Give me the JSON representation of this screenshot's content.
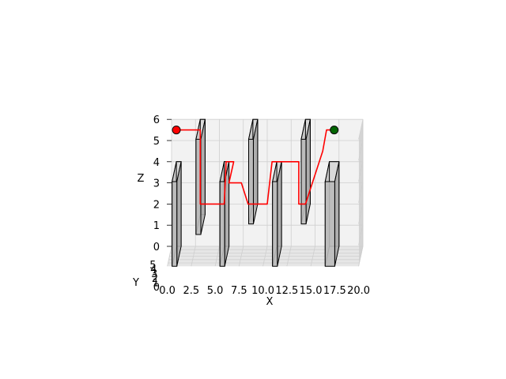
{
  "chart_data": {
    "type": "3d-path-with-obstacles",
    "xlabel": "X",
    "ylabel": "Y",
    "zlabel": "Z",
    "xlim": [
      0,
      20
    ],
    "ylim": [
      0,
      6
    ],
    "zlim": [
      0,
      6
    ],
    "x_ticks": [
      "0.0",
      "2.5",
      "5.0",
      "7.5",
      "10.0",
      "12.5",
      "15.0",
      "17.5",
      "20.0"
    ],
    "z_ticks": [
      "0",
      "1",
      "2",
      "3",
      "4",
      "5",
      "6"
    ],
    "y_ticks": [
      "0",
      "1",
      "2",
      "3",
      "4",
      "5"
    ],
    "grid": true,
    "obstacles": [
      {
        "x": [
          0.5,
          1.0
        ],
        "y": [
          0,
          6
        ],
        "z": [
          0,
          4
        ]
      },
      {
        "x": [
          3.0,
          3.5
        ],
        "y": [
          0,
          6
        ],
        "z": [
          1.5,
          6
        ]
      },
      {
        "x": [
          5.5,
          6.0
        ],
        "y": [
          0,
          6
        ],
        "z": [
          0,
          4
        ]
      },
      {
        "x": [
          8.5,
          9.0
        ],
        "y": [
          0,
          6
        ],
        "z": [
          2,
          6
        ]
      },
      {
        "x": [
          11.0,
          11.5
        ],
        "y": [
          0,
          6
        ],
        "z": [
          0,
          4
        ]
      },
      {
        "x": [
          14.0,
          14.5
        ],
        "y": [
          0,
          6
        ],
        "z": [
          2,
          6
        ]
      },
      {
        "x": [
          16.5,
          17.5
        ],
        "y": [
          0,
          6
        ],
        "z": [
          0,
          4
        ]
      }
    ],
    "path": {
      "color": "#ff0000",
      "points": [
        [
          0.5,
          0,
          5.5
        ],
        [
          3.0,
          0,
          5.5
        ],
        [
          3.0,
          0,
          2.0
        ],
        [
          5.5,
          0,
          2.0
        ],
        [
          5.7,
          0,
          4.0
        ],
        [
          6.5,
          0,
          4.0
        ],
        [
          6.0,
          0,
          3.0
        ],
        [
          7.3,
          0,
          3.0
        ],
        [
          8.0,
          0,
          2.0
        ],
        [
          10.0,
          0,
          2.0
        ],
        [
          10.5,
          0,
          4.0
        ],
        [
          13.3,
          0,
          4.0
        ],
        [
          13.3,
          0,
          2.0
        ],
        [
          14.0,
          0,
          2.0
        ],
        [
          15.8,
          0,
          4.5
        ],
        [
          16.2,
          0,
          5.5
        ],
        [
          17.0,
          0,
          5.5
        ]
      ]
    },
    "start": {
      "x": 0.5,
      "y": 0,
      "z": 5.5,
      "color": "#ff0000"
    },
    "goal": {
      "x": 17.0,
      "y": 0,
      "z": 5.5,
      "color": "#006400"
    }
  }
}
